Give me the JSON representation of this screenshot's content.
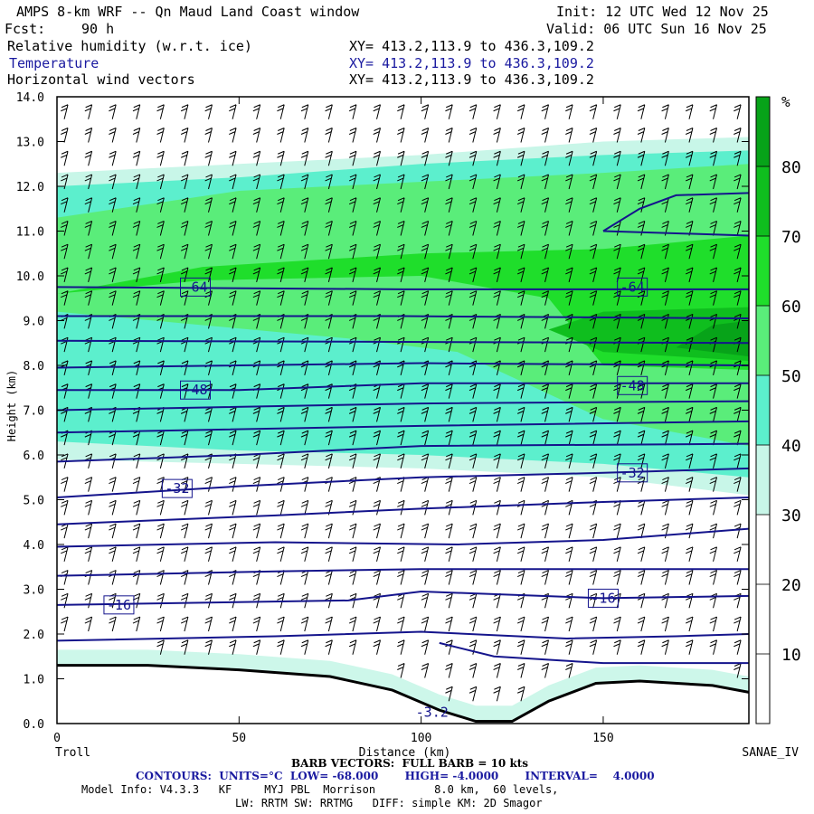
{
  "header": {
    "title": "AMPS 8-km WRF -- Qn Maud Land Coast window",
    "init": "Init: 12 UTC Wed 12 Nov 25",
    "fcst_label": "Fcst:",
    "fcst_value": "90 h",
    "valid": "Valid: 06 UTC Sun 16 Nov 25",
    "fields": [
      {
        "name": "Relative humidity (w.r.t. ice)",
        "xy": "XY= 413.2,113.9 to 436.3,109.2"
      },
      {
        "name": "Temperature",
        "xy": "XY= 413.2,113.9 to 436.3,109.2"
      },
      {
        "name": "Horizontal wind vectors",
        "xy": "XY= 413.2,113.9 to 436.3,109.2"
      }
    ]
  },
  "chart_data": {
    "type": "heatmap",
    "xlabel": "Distance (km)",
    "ylabel": "Height (km)",
    "xlim": [
      0,
      190
    ],
    "ylim": [
      0,
      14
    ],
    "x_ticks": [
      "0",
      "50",
      "100",
      "150"
    ],
    "y_ticks": [
      "0.0",
      "1.0",
      "2.0",
      "3.0",
      "4.0",
      "5.0",
      "6.0",
      "7.0",
      "8.0",
      "9.0",
      "10.0",
      "11.0",
      "12.0",
      "13.0",
      "14.0"
    ],
    "left_endpoint": "Troll",
    "right_endpoint": "SANAE_IV",
    "colorbar": {
      "unit": "%",
      "labels": [
        "10",
        "20",
        "30",
        "40",
        "50",
        "60",
        "70",
        "80"
      ],
      "colors": [
        "#ffffff",
        "#ffffff",
        "#ffffff",
        "#c8f6e8",
        "#5cefcd",
        "#5aed7a",
        "#1fde2b",
        "#0fbe1e",
        "#07a319"
      ]
    },
    "rh_layers": [
      {
        "rh": 30,
        "color": "#c8f6e8",
        "bottom": [
          [
            0,
            5.9
          ],
          [
            50,
            5.8
          ],
          [
            100,
            5.7
          ],
          [
            150,
            5.5
          ],
          [
            190,
            5.1
          ]
        ],
        "top": [
          [
            0,
            12.3
          ],
          [
            50,
            12.5
          ],
          [
            100,
            12.7
          ],
          [
            150,
            13.0
          ],
          [
            190,
            13.1
          ]
        ]
      },
      {
        "rh": 40,
        "color": "#5cefcd",
        "bottom": [
          [
            0,
            6.3
          ],
          [
            50,
            6.1
          ],
          [
            100,
            6.0
          ],
          [
            150,
            5.8
          ],
          [
            190,
            5.5
          ]
        ],
        "top": [
          [
            0,
            12.0
          ],
          [
            50,
            12.2
          ],
          [
            100,
            12.5
          ],
          [
            150,
            12.7
          ],
          [
            190,
            12.8
          ]
        ]
      },
      {
        "rh": 50,
        "color": "#5aed7a",
        "bottom": [
          [
            0,
            9.2
          ],
          [
            40,
            8.9
          ],
          [
            80,
            8.6
          ],
          [
            110,
            8.3
          ],
          [
            150,
            6.8
          ],
          [
            190,
            6.2
          ]
        ],
        "top": [
          [
            0,
            11.3
          ],
          [
            50,
            11.9
          ],
          [
            100,
            12.1
          ],
          [
            150,
            12.3
          ],
          [
            190,
            12.5
          ]
        ]
      },
      {
        "rh": 60,
        "color": "#1fde2b",
        "bottom": [
          [
            0,
            9.6
          ],
          [
            40,
            9.9
          ],
          [
            100,
            10.0
          ],
          [
            135,
            9.5
          ],
          [
            150,
            8.0
          ],
          [
            190,
            7.9
          ]
        ],
        "top": [
          [
            0,
            9.6
          ],
          [
            40,
            10.2
          ],
          [
            100,
            10.5
          ],
          [
            150,
            10.6
          ],
          [
            190,
            10.9
          ]
        ]
      },
      {
        "rh": 70,
        "color": "#0fbe1e",
        "bottom": [
          [
            135,
            8.8
          ],
          [
            150,
            8.3
          ],
          [
            190,
            8.1
          ]
        ],
        "top": [
          [
            135,
            8.8
          ],
          [
            150,
            9.2
          ],
          [
            190,
            9.3
          ]
        ]
      },
      {
        "rh": 80,
        "color": "#07a319",
        "bottom": [
          [
            170,
            8.4
          ],
          [
            190,
            8.2
          ]
        ],
        "top": [
          [
            170,
            8.4
          ],
          [
            180,
            8.9
          ],
          [
            190,
            9.0
          ]
        ]
      }
    ],
    "temperature_contours": [
      {
        "value": -64,
        "points": [
          [
            0,
            9.75
          ],
          [
            95,
            9.7
          ],
          [
            190,
            9.7
          ]
        ]
      },
      {
        "value": -60,
        "points": [
          [
            0,
            9.1
          ],
          [
            95,
            9.1
          ],
          [
            190,
            9.05
          ]
        ]
      },
      {
        "value": -56,
        "points": [
          [
            0,
            8.55
          ],
          [
            190,
            8.5
          ]
        ]
      },
      {
        "value": -52,
        "points": [
          [
            0,
            7.95
          ],
          [
            100,
            8.05
          ],
          [
            190,
            8.0
          ]
        ]
      },
      {
        "value": -48,
        "points": [
          [
            0,
            7.45
          ],
          [
            50,
            7.45
          ],
          [
            100,
            7.6
          ],
          [
            190,
            7.6
          ]
        ]
      },
      {
        "value": -44,
        "points": [
          [
            0,
            7.0
          ],
          [
            100,
            7.15
          ],
          [
            190,
            7.2
          ]
        ]
      },
      {
        "value": -40,
        "points": [
          [
            0,
            6.5
          ],
          [
            100,
            6.65
          ],
          [
            190,
            6.75
          ]
        ]
      },
      {
        "value": -36,
        "points": [
          [
            0,
            5.85
          ],
          [
            50,
            6.0
          ],
          [
            100,
            6.2
          ],
          [
            190,
            6.25
          ]
        ]
      },
      {
        "value": -32,
        "points": [
          [
            0,
            5.05
          ],
          [
            50,
            5.3
          ],
          [
            100,
            5.5
          ],
          [
            150,
            5.6
          ],
          [
            190,
            5.7
          ]
        ]
      },
      {
        "value": -28,
        "points": [
          [
            0,
            4.45
          ],
          [
            60,
            4.65
          ],
          [
            100,
            4.8
          ],
          [
            150,
            4.95
          ],
          [
            190,
            5.05
          ]
        ]
      },
      {
        "value": -24,
        "points": [
          [
            0,
            3.95
          ],
          [
            60,
            4.05
          ],
          [
            110,
            4.0
          ],
          [
            150,
            4.1
          ],
          [
            190,
            4.35
          ]
        ]
      },
      {
        "value": -20,
        "points": [
          [
            0,
            3.3
          ],
          [
            60,
            3.4
          ],
          [
            100,
            3.45
          ],
          [
            150,
            3.45
          ],
          [
            190,
            3.45
          ]
        ]
      },
      {
        "value": -16,
        "points": [
          [
            0,
            2.65
          ],
          [
            80,
            2.75
          ],
          [
            100,
            2.95
          ],
          [
            150,
            2.8
          ],
          [
            190,
            2.85
          ]
        ]
      },
      {
        "value": -12,
        "points": [
          [
            0,
            1.85
          ],
          [
            60,
            1.95
          ],
          [
            100,
            2.05
          ],
          [
            140,
            1.9
          ],
          [
            170,
            1.95
          ],
          [
            190,
            2.0
          ]
        ]
      },
      {
        "value": -8,
        "points": [
          [
            105,
            1.8
          ],
          [
            120,
            1.5
          ],
          [
            150,
            1.35
          ],
          [
            190,
            1.35
          ]
        ]
      },
      {
        "value": -4,
        "points": [
          [
            150,
            11.0
          ],
          [
            160,
            11.5
          ],
          [
            170,
            11.8
          ],
          [
            190,
            11.85
          ]
        ]
      },
      {
        "value": -4,
        "points": [
          [
            150,
            11.0
          ],
          [
            170,
            10.95
          ],
          [
            190,
            10.9
          ]
        ]
      }
    ],
    "terrain": [
      [
        0,
        1.3
      ],
      [
        25,
        1.3
      ],
      [
        50,
        1.2
      ],
      [
        75,
        1.05
      ],
      [
        92,
        0.75
      ],
      [
        105,
        0.3
      ],
      [
        115,
        0.05
      ],
      [
        125,
        0.05
      ],
      [
        135,
        0.5
      ],
      [
        148,
        0.9
      ],
      [
        160,
        0.95
      ],
      [
        180,
        0.85
      ],
      [
        190,
        0.7
      ]
    ],
    "contour_labels": [
      {
        "text": "-64",
        "x": 38,
        "y": 9.75
      },
      {
        "text": "-64",
        "x": 158,
        "y": 9.75
      },
      {
        "text": "-48",
        "x": 38,
        "y": 7.45
      },
      {
        "text": "-48",
        "x": 158,
        "y": 7.55
      },
      {
        "text": "-32",
        "x": 33,
        "y": 5.25
      },
      {
        "text": "-32",
        "x": 158,
        "y": 5.6
      },
      {
        "text": "-16",
        "x": 17,
        "y": 2.65
      },
      {
        "text": "-16",
        "x": 150,
        "y": 2.8
      },
      {
        "text": "-3.2",
        "x": 103,
        "y": 0.25
      }
    ]
  },
  "footer": {
    "barb": "BARB VECTORS:  FULL BARB = 10 kts",
    "contours": "CONTOURS:  UNITS=°C  LOW= -68.000       HIGH= -4.0000       INTERVAL=    4.0000",
    "model_info": "Model Info: V4.3.3   KF     MYJ PBL  Morrison         8.0 km,  60 levels,",
    "physics": "LW: RRTM SW: RRTMG   DIFF: simple KM: 2D Smagor"
  }
}
